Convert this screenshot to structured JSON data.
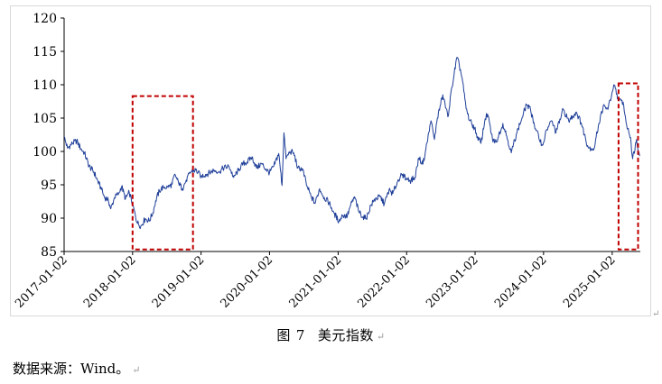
{
  "caption": {
    "figure_label": "图",
    "figure_number": "7",
    "title": "美元指数"
  },
  "source_note": "数据来源：Wind。",
  "paragraph_mark": "↵",
  "colors": {
    "line": "#1f3f99",
    "highlight_box": "#c00000",
    "axis": "#000000"
  },
  "chart_data": {
    "type": "line",
    "title": "",
    "xlabel": "",
    "ylabel": "",
    "ylim": [
      85,
      120
    ],
    "yticks": [
      85,
      90,
      95,
      100,
      105,
      110,
      115,
      120
    ],
    "xlim": [
      "2017-01-02",
      "2025-06-01"
    ],
    "xticks": [
      "2017-01-02",
      "2018-01-02",
      "2019-01-02",
      "2020-01-02",
      "2021-01-02",
      "2022-01-02",
      "2023-01-02",
      "2024-01-02",
      "2025-01-02"
    ],
    "grid": false,
    "legend": "none",
    "series": [
      {
        "name": "",
        "points": [
          [
            "2017-01-02",
            102.2
          ],
          [
            "2017-01-20",
            100.5
          ],
          [
            "2017-02-15",
            101.2
          ],
          [
            "2017-03-10",
            101.6
          ],
          [
            "2017-04-01",
            100.4
          ],
          [
            "2017-04-20",
            99.8
          ],
          [
            "2017-05-15",
            97.8
          ],
          [
            "2017-06-10",
            96.9
          ],
          [
            "2017-07-01",
            95.5
          ],
          [
            "2017-07-20",
            94.3
          ],
          [
            "2017-08-05",
            93.1
          ],
          [
            "2017-08-25",
            92.8
          ],
          [
            "2017-09-08",
            91.4
          ],
          [
            "2017-09-28",
            93.1
          ],
          [
            "2017-10-20",
            93.7
          ],
          [
            "2017-11-05",
            94.8
          ],
          [
            "2017-11-25",
            92.9
          ],
          [
            "2017-12-15",
            93.9
          ],
          [
            "2018-01-02",
            92.1
          ],
          [
            "2018-01-25",
            89.4
          ],
          [
            "2018-02-15",
            88.8
          ],
          [
            "2018-03-10",
            89.9
          ],
          [
            "2018-04-01",
            89.6
          ],
          [
            "2018-04-20",
            90.8
          ],
          [
            "2018-05-05",
            92.6
          ],
          [
            "2018-05-25",
            94.1
          ],
          [
            "2018-06-15",
            94.7
          ],
          [
            "2018-07-10",
            94.6
          ],
          [
            "2018-08-01",
            95.1
          ],
          [
            "2018-08-15",
            96.6
          ],
          [
            "2018-09-05",
            95.2
          ],
          [
            "2018-09-25",
            94.4
          ],
          [
            "2018-10-15",
            95.7
          ],
          [
            "2018-11-10",
            97.0
          ],
          [
            "2018-12-05",
            97.2
          ],
          [
            "2019-01-02",
            96.3
          ],
          [
            "2019-02-10",
            96.7
          ],
          [
            "2019-03-10",
            97.2
          ],
          [
            "2019-04-10",
            97.0
          ],
          [
            "2019-05-05",
            97.6
          ],
          [
            "2019-06-01",
            97.7
          ],
          [
            "2019-06-25",
            96.1
          ],
          [
            "2019-07-20",
            97.2
          ],
          [
            "2019-08-15",
            98.2
          ],
          [
            "2019-09-05",
            98.4
          ],
          [
            "2019-10-01",
            99.2
          ],
          [
            "2019-10-25",
            97.5
          ],
          [
            "2019-11-20",
            98.2
          ],
          [
            "2019-12-15",
            97.3
          ],
          [
            "2020-01-02",
            96.8
          ],
          [
            "2020-01-25",
            97.8
          ],
          [
            "2020-02-20",
            99.7
          ],
          [
            "2020-03-09",
            94.9
          ],
          [
            "2020-03-19",
            102.8
          ],
          [
            "2020-03-30",
            98.9
          ],
          [
            "2020-04-20",
            100.0
          ],
          [
            "2020-05-10",
            99.8
          ],
          [
            "2020-06-01",
            97.5
          ],
          [
            "2020-06-25",
            97.4
          ],
          [
            "2020-07-20",
            94.8
          ],
          [
            "2020-08-10",
            93.3
          ],
          [
            "2020-09-01",
            92.2
          ],
          [
            "2020-09-25",
            94.4
          ],
          [
            "2020-10-20",
            93.1
          ],
          [
            "2020-11-15",
            92.3
          ],
          [
            "2020-12-10",
            90.8
          ],
          [
            "2021-01-06",
            89.5
          ],
          [
            "2021-01-25",
            90.4
          ],
          [
            "2021-02-20",
            90.3
          ],
          [
            "2021-03-10",
            92.0
          ],
          [
            "2021-03-31",
            93.2
          ],
          [
            "2021-04-20",
            91.1
          ],
          [
            "2021-05-15",
            90.2
          ],
          [
            "2021-06-01",
            89.9
          ],
          [
            "2021-06-25",
            91.9
          ],
          [
            "2021-07-20",
            92.9
          ],
          [
            "2021-08-15",
            93.2
          ],
          [
            "2021-09-05",
            92.1
          ],
          [
            "2021-09-30",
            94.2
          ],
          [
            "2021-10-20",
            93.7
          ],
          [
            "2021-11-15",
            95.5
          ],
          [
            "2021-11-30",
            96.3
          ],
          [
            "2021-12-20",
            96.2
          ],
          [
            "2022-01-02",
            96.0
          ],
          [
            "2022-01-20",
            95.6
          ],
          [
            "2022-02-15",
            96.1
          ],
          [
            "2022-03-08",
            99.0
          ],
          [
            "2022-03-30",
            98.1
          ],
          [
            "2022-04-15",
            100.4
          ],
          [
            "2022-05-12",
            104.6
          ],
          [
            "2022-05-30",
            101.8
          ],
          [
            "2022-06-15",
            105.0
          ],
          [
            "2022-07-14",
            108.5
          ],
          [
            "2022-08-10",
            105.2
          ],
          [
            "2022-09-01",
            109.7
          ],
          [
            "2022-09-27",
            114.1
          ],
          [
            "2022-10-10",
            112.9
          ],
          [
            "2022-10-25",
            111.0
          ],
          [
            "2022-11-15",
            106.4
          ],
          [
            "2022-12-05",
            104.6
          ],
          [
            "2022-12-30",
            103.5
          ],
          [
            "2023-01-15",
            102.2
          ],
          [
            "2023-02-02",
            101.2
          ],
          [
            "2023-02-25",
            104.9
          ],
          [
            "2023-03-10",
            105.6
          ],
          [
            "2023-04-05",
            101.8
          ],
          [
            "2023-04-25",
            101.4
          ],
          [
            "2023-05-30",
            104.2
          ],
          [
            "2023-06-20",
            102.3
          ],
          [
            "2023-07-14",
            99.8
          ],
          [
            "2023-08-10",
            102.6
          ],
          [
            "2023-09-10",
            105.1
          ],
          [
            "2023-10-03",
            107.0
          ],
          [
            "2023-10-25",
            106.2
          ],
          [
            "2023-11-20",
            103.4
          ],
          [
            "2023-12-27",
            100.9
          ],
          [
            "2024-01-20",
            103.3
          ],
          [
            "2024-02-15",
            104.6
          ],
          [
            "2024-03-08",
            102.8
          ],
          [
            "2024-04-16",
            106.3
          ],
          [
            "2024-05-15",
            104.6
          ],
          [
            "2024-06-25",
            105.9
          ],
          [
            "2024-07-20",
            104.3
          ],
          [
            "2024-08-27",
            100.6
          ],
          [
            "2024-09-27",
            100.4
          ],
          [
            "2024-10-20",
            103.8
          ],
          [
            "2024-11-15",
            106.8
          ],
          [
            "2024-12-10",
            106.3
          ],
          [
            "2025-01-02",
            108.9
          ],
          [
            "2025-01-13",
            109.9
          ],
          [
            "2025-02-05",
            107.6
          ],
          [
            "2025-03-01",
            107.4
          ],
          [
            "2025-03-20",
            104.0
          ],
          [
            "2025-04-10",
            102.1
          ],
          [
            "2025-04-21",
            98.9
          ],
          [
            "2025-05-12",
            101.8
          ],
          [
            "2025-05-28",
            99.3
          ]
        ]
      }
    ],
    "highlight_boxes": [
      {
        "x_start": "2018-01-02",
        "x_end": "2018-11-20",
        "y_bottom": 85.3,
        "y_top": 108.3
      },
      {
        "x_start": "2025-02-05",
        "x_end": "2025-05-20",
        "y_bottom": 85.3,
        "y_top": 110.2
      }
    ]
  }
}
